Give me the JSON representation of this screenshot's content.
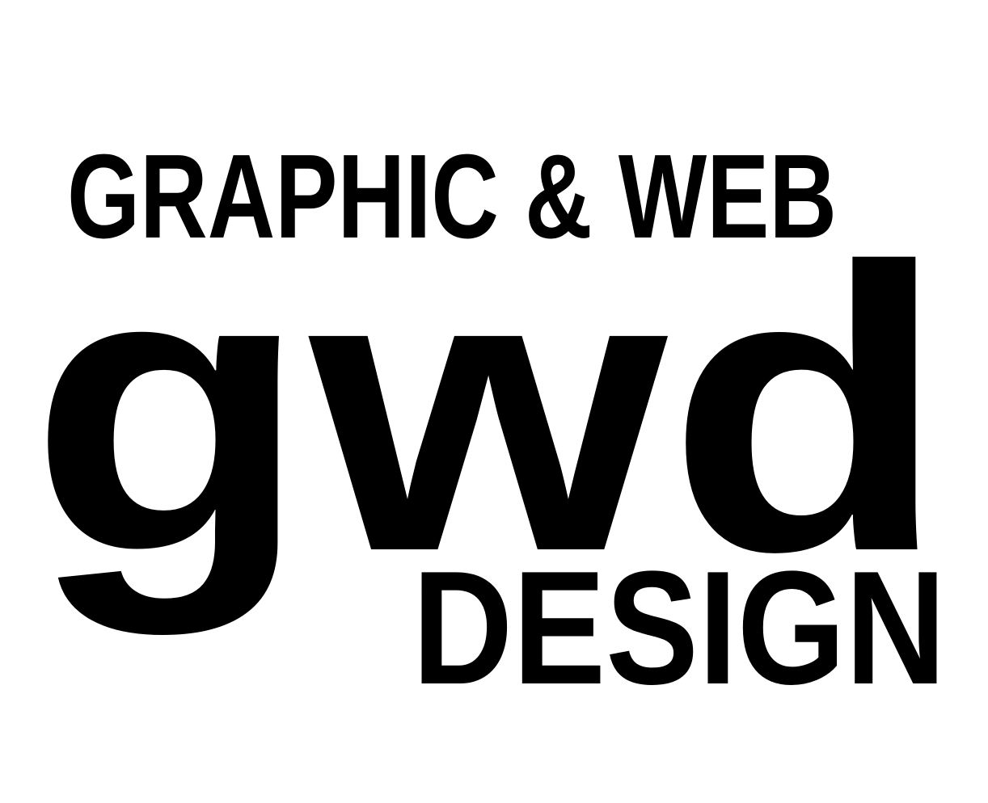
{
  "logo": {
    "top_line": "GRAPHIC & WEB",
    "monogram": "gwd",
    "bottom_line": "DESIGN",
    "ink_color": "#000000",
    "background_color": "#ffffff"
  }
}
